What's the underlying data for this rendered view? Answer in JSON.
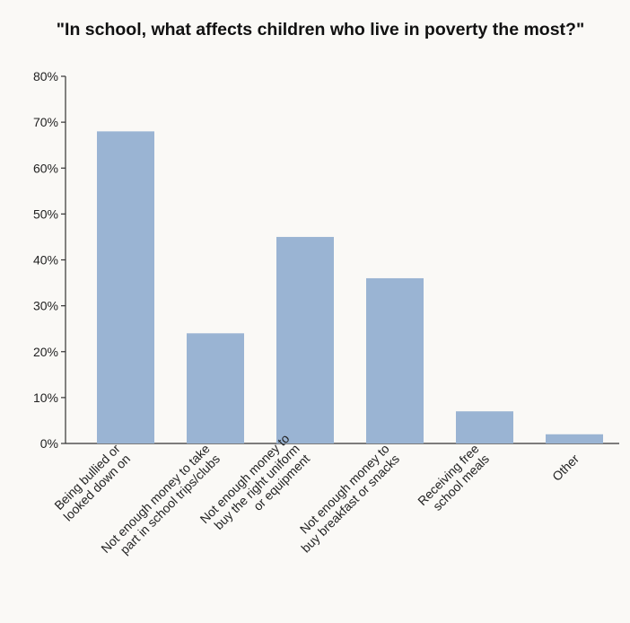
{
  "chart_data": {
    "type": "bar",
    "title": "\"In school, what affects children who live in poverty the most?\"",
    "xlabel": "",
    "ylabel": "",
    "ylim": [
      0,
      80
    ],
    "y_ticks": [
      "0%",
      "10%",
      "20%",
      "30%",
      "40%",
      "50%",
      "60%",
      "70%",
      "80%"
    ],
    "categories": [
      [
        "Being bullied or",
        "looked down on"
      ],
      [
        "Not enough money to take",
        "part in school trips/clubs"
      ],
      [
        "Not enough money to",
        "buy the right uniform",
        "or equipment"
      ],
      [
        "Not enough money to",
        "buy breakfast or snacks"
      ],
      [
        "Receiving free",
        "school meals"
      ],
      [
        "Other"
      ]
    ],
    "values": [
      68,
      24,
      45,
      36,
      7,
      2
    ],
    "bar_color": "#9ab4d3",
    "grid": false
  }
}
